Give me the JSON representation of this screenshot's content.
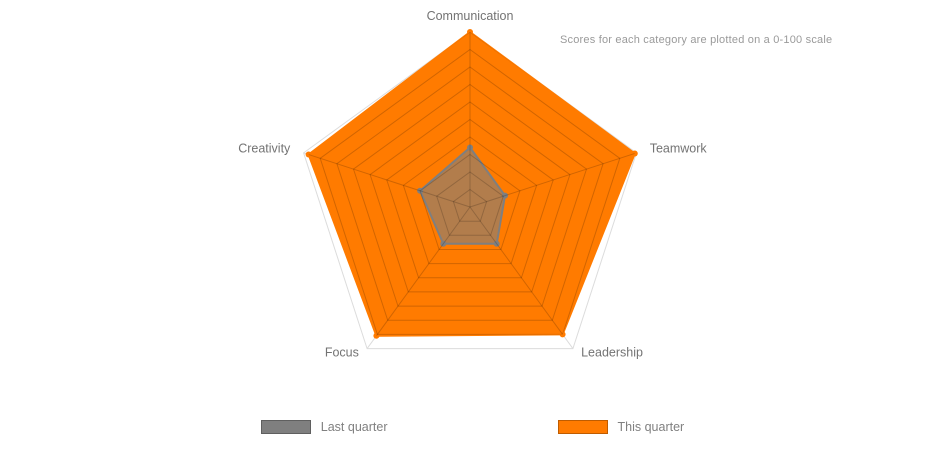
{
  "chart_data": {
    "type": "radar",
    "categories": [
      "Communication",
      "Teamwork",
      "Leadership",
      "Focus",
      "Creativity"
    ],
    "max": 100,
    "grid_levels": 10,
    "grid_on": true,
    "legend_position": "bottom",
    "note": "Scores for each category are plotted on a 0-100 scale",
    "series": [
      {
        "name": "Last quarter",
        "color": "#7f7f7f",
        "fill_opacity": 0.6,
        "values": [
          34,
          21,
          26,
          26,
          30
        ]
      },
      {
        "name": "This quarter",
        "color": "#ff7b00",
        "fill_opacity": 1.0,
        "values": [
          100,
          99,
          90,
          91,
          97
        ]
      }
    ]
  }
}
